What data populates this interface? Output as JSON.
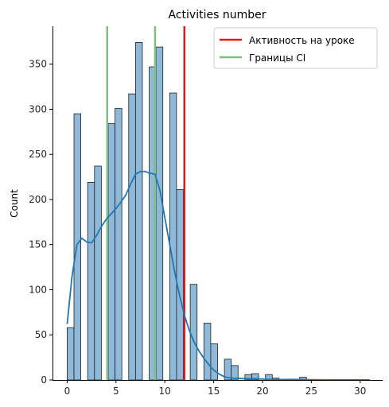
{
  "chart_data": {
    "type": "histogram",
    "title": "Activities number",
    "xlabel": "",
    "ylabel": "Count",
    "xlim": [
      -1.5,
      32.3
    ],
    "ylim": [
      0,
      392
    ],
    "xticks": [
      0,
      5,
      10,
      15,
      20,
      25,
      30
    ],
    "yticks": [
      0,
      50,
      100,
      150,
      200,
      250,
      300,
      350
    ],
    "grid": false,
    "legend_position": "top-right",
    "bins": {
      "x": [
        0,
        0.7,
        1.4,
        2.1,
        2.8,
        3.5,
        4.2,
        4.9,
        5.6,
        6.3,
        7.0,
        7.7,
        8.4,
        9.1,
        9.8,
        10.5,
        11.2,
        11.9,
        12.6,
        13.3,
        14.0,
        14.7,
        15.4,
        16.1,
        16.8,
        17.5,
        18.2,
        18.9,
        19.6,
        20.3,
        21.0,
        21.7,
        22.4,
        23.1,
        23.8,
        24.5,
        25.2,
        25.9,
        26.6,
        27.3,
        28.0,
        28.7,
        29.4,
        30.1,
        30.8
      ],
      "counts": [
        58,
        295,
        0,
        219,
        237,
        0,
        284,
        301,
        0,
        317,
        374,
        0,
        347,
        369,
        0,
        318,
        211,
        0,
        106,
        0,
        63,
        40,
        0,
        23,
        16,
        0,
        6,
        7,
        0,
        6,
        2,
        0,
        0,
        0,
        3,
        0,
        0,
        0,
        0,
        0,
        0,
        0,
        0,
        0,
        0
      ]
    },
    "bin_width": 0.7,
    "kde": {
      "x": [
        0,
        0.5,
        1,
        1.5,
        2,
        2.5,
        3,
        3.5,
        4,
        4.5,
        5,
        5.5,
        6,
        6.5,
        7,
        7.5,
        8,
        8.5,
        9,
        9.5,
        10,
        10.5,
        11,
        11.5,
        12,
        12.5,
        13,
        13.5,
        14,
        14.5,
        15,
        15.5,
        16,
        16.5,
        17,
        18,
        19,
        20,
        21,
        22,
        23,
        24,
        25,
        26,
        27,
        28,
        29,
        30,
        31
      ],
      "y": [
        62,
        115,
        150,
        157,
        153,
        152,
        160,
        170,
        178,
        184,
        190,
        197,
        205,
        217,
        228,
        231,
        231,
        229,
        228,
        210,
        180,
        150,
        120,
        94,
        72,
        55,
        42,
        32,
        24,
        17,
        11,
        7,
        4,
        2.5,
        2,
        1.5,
        1.5,
        1,
        0.6,
        0.5,
        0.6,
        0.5,
        0.3,
        0.2,
        0.1,
        0.1,
        0.1,
        0.1,
        0.1
      ]
    },
    "vlines": [
      {
        "name": "Активность на уроке",
        "x": 12.0,
        "color": "#e31a1c"
      },
      {
        "name": "Границы CI",
        "x": 4.1,
        "color": "#7fbf7f"
      },
      {
        "name": "Границы CI",
        "x": 9.0,
        "color": "#7fbf7f"
      }
    ],
    "legend": [
      {
        "label": "Активность на уроке",
        "color": "#e31a1c"
      },
      {
        "label": "Границы CI",
        "color": "#7fbf7f"
      }
    ],
    "colors": {
      "bar_fill": "#8fb9d8",
      "bar_edge": "#1f1f1f",
      "kde": "#1f77b4"
    }
  }
}
